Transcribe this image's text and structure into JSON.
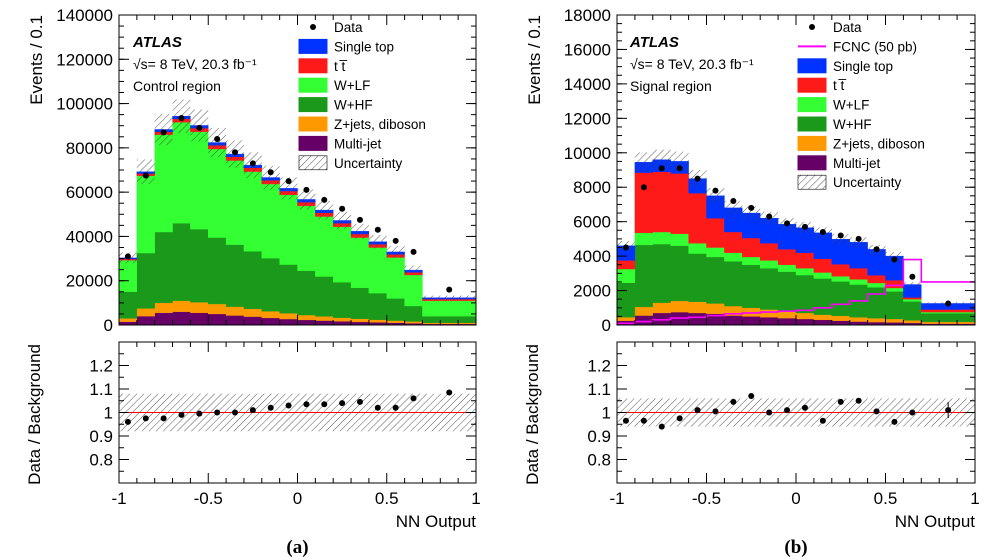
{
  "chart_data": [
    {
      "type": "stacked-histogram",
      "panel_label": "(a)",
      "region": "Control region",
      "experiment": "ATLAS",
      "energy_label": "√s= 8 TeV,  20.3 fb⁻¹",
      "xlabel": "NN Output",
      "ylabel": "Events / 0.1",
      "ratio_ylabel": "Data / Background",
      "xlim": [
        -1,
        1
      ],
      "ylim": [
        0,
        140000
      ],
      "yticks": [
        "0",
        "20000",
        "40000",
        "60000",
        "80000",
        "100000",
        "120000",
        "140000"
      ],
      "xticks": [
        "-1",
        "-0.5",
        "0",
        "0.5",
        "1"
      ],
      "ratio_ylim": [
        0.7,
        1.3
      ],
      "ratio_yticks": [
        "0.8",
        "0.9",
        "1",
        "1.1",
        "1.2"
      ],
      "legend_position": "top-right",
      "legend": [
        {
          "label": "Data",
          "kind": "marker"
        },
        {
          "label": "Single top",
          "kind": "box",
          "color": "#0033ff"
        },
        {
          "label": "t t̅",
          "kind": "box",
          "color": "#ff1a1a"
        },
        {
          "label": "W+LF",
          "kind": "box",
          "color": "#33ff33"
        },
        {
          "label": "W+HF",
          "kind": "box",
          "color": "#1a991a"
        },
        {
          "label": "Z+jets, diboson",
          "kind": "box",
          "color": "#ff9900"
        },
        {
          "label": "Multi-jet",
          "kind": "box",
          "color": "#660066"
        },
        {
          "label": "Uncertainty",
          "kind": "hatch"
        }
      ],
      "bin_edges": [
        -1,
        -0.9,
        -0.8,
        -0.7,
        -0.6,
        -0.5,
        -0.4,
        -0.3,
        -0.2,
        -0.1,
        0,
        0.1,
        0.2,
        0.3,
        0.4,
        0.5,
        0.6,
        0.7,
        1
      ],
      "stack": [
        {
          "name": "Multi-jet",
          "color": "#660066",
          "values": [
            1500,
            4000,
            5500,
            6000,
            5500,
            5000,
            4300,
            3800,
            3200,
            2700,
            2300,
            2000,
            1700,
            1400,
            1200,
            1000,
            800,
            500
          ]
        },
        {
          "name": "Z+jets, diboson",
          "color": "#ff9900",
          "values": [
            1500,
            3500,
            4500,
            5000,
            4800,
            4500,
            4000,
            3500,
            3000,
            2600,
            2200,
            1900,
            1600,
            1400,
            1200,
            1000,
            800,
            500
          ]
        },
        {
          "name": "W+HF",
          "color": "#1a991a",
          "values": [
            12000,
            25000,
            32000,
            35000,
            33000,
            30000,
            28000,
            26000,
            24000,
            22000,
            20000,
            18000,
            16000,
            14000,
            12000,
            10000,
            7000,
            3000
          ]
        },
        {
          "name": "W+LF",
          "color": "#33ff33",
          "values": [
            14300,
            34900,
            44000,
            45600,
            44000,
            40000,
            38000,
            36000,
            33500,
            31500,
            29300,
            27100,
            25100,
            22700,
            20600,
            18500,
            14000,
            7000
          ]
        },
        {
          "name": "t t̅",
          "color": "#ff1a1a",
          "values": [
            500,
            1000,
            1300,
            1500,
            1600,
            1700,
            1700,
            1700,
            1700,
            1700,
            1700,
            1700,
            1600,
            1600,
            1500,
            1400,
            1200,
            700
          ]
        },
        {
          "name": "Single top",
          "color": "#0033ff",
          "values": [
            500,
            800,
            1000,
            1200,
            1200,
            1200,
            1200,
            1200,
            1200,
            1200,
            1200,
            1200,
            1200,
            1200,
            1100,
            1100,
            1000,
            600
          ]
        }
      ],
      "data_points": {
        "x": [
          -0.95,
          -0.85,
          -0.75,
          -0.65,
          -0.55,
          -0.45,
          -0.35,
          -0.25,
          -0.15,
          -0.05,
          0.05,
          0.15,
          0.25,
          0.35,
          0.45,
          0.55,
          0.65,
          0.85
        ],
        "y": [
          31000,
          67500,
          87000,
          93500,
          89000,
          84000,
          78000,
          73000,
          69000,
          65000,
          61000,
          56500,
          52500,
          47500,
          43000,
          38000,
          33000,
          16000
        ]
      },
      "ratio_points": {
        "x": [
          -0.95,
          -0.85,
          -0.75,
          -0.65,
          -0.55,
          -0.45,
          -0.35,
          -0.25,
          -0.15,
          -0.05,
          0.05,
          0.15,
          0.25,
          0.35,
          0.45,
          0.55,
          0.65,
          0.85
        ],
        "y": [
          0.96,
          0.975,
          0.975,
          0.99,
          0.995,
          1.0,
          1.0,
          1.01,
          1.02,
          1.03,
          1.035,
          1.035,
          1.04,
          1.045,
          1.02,
          1.02,
          1.06,
          1.085
        ]
      },
      "ratio_band_half_width": [
        0.08,
        0.08,
        0.08,
        0.08,
        0.08,
        0.08,
        0.08,
        0.08,
        0.08,
        0.08,
        0.08,
        0.08,
        0.08,
        0.08,
        0.08,
        0.08,
        0.08,
        0.08
      ],
      "uncertainty_fraction": 0.08
    },
    {
      "type": "stacked-histogram",
      "panel_label": "(b)",
      "region": "Signal region",
      "experiment": "ATLAS",
      "energy_label": "√s= 8 TeV,  20.3 fb⁻¹",
      "xlabel": "NN Output",
      "ylabel": "Events / 0.1",
      "ratio_ylabel": "Data / Background",
      "xlim": [
        -1,
        1
      ],
      "ylim": [
        0,
        18000
      ],
      "yticks": [
        "0",
        "2000",
        "4000",
        "6000",
        "8000",
        "10000",
        "12000",
        "14000",
        "16000",
        "18000"
      ],
      "xticks": [
        "-1",
        "-0.5",
        "0",
        "0.5",
        "1"
      ],
      "ratio_ylim": [
        0.7,
        1.3
      ],
      "ratio_yticks": [
        "0.8",
        "0.9",
        "1",
        "1.1",
        "1.2"
      ],
      "legend_position": "top-right",
      "legend": [
        {
          "label": "Data",
          "kind": "marker"
        },
        {
          "label": "FCNC (50 pb)",
          "kind": "line",
          "color": "#ff00ff"
        },
        {
          "label": "Single top",
          "kind": "box",
          "color": "#0033ff"
        },
        {
          "label": "t t̅",
          "kind": "box",
          "color": "#ff1a1a"
        },
        {
          "label": "W+LF",
          "kind": "box",
          "color": "#33ff33"
        },
        {
          "label": "W+HF",
          "kind": "box",
          "color": "#1a991a"
        },
        {
          "label": "Z+jets, diboson",
          "kind": "box",
          "color": "#ff9900"
        },
        {
          "label": "Multi-jet",
          "kind": "box",
          "color": "#660066"
        },
        {
          "label": "Uncertainty",
          "kind": "hatch"
        }
      ],
      "bin_edges": [
        -1,
        -0.9,
        -0.8,
        -0.7,
        -0.6,
        -0.5,
        -0.4,
        -0.3,
        -0.2,
        -0.1,
        0,
        0.1,
        0.2,
        0.3,
        0.4,
        0.5,
        0.6,
        0.7,
        1
      ],
      "stack": [
        {
          "name": "Multi-jet",
          "color": "#660066",
          "values": [
            250,
            550,
            700,
            750,
            700,
            650,
            550,
            500,
            450,
            400,
            350,
            300,
            250,
            200,
            170,
            150,
            120,
            80
          ]
        },
        {
          "name": "Z+jets, diboson",
          "color": "#ff9900",
          "values": [
            200,
            500,
            600,
            650,
            650,
            600,
            550,
            500,
            450,
            400,
            350,
            300,
            280,
            250,
            220,
            200,
            150,
            100
          ]
        },
        {
          "name": "W+HF",
          "color": "#1a991a",
          "values": [
            2000,
            3600,
            3400,
            3200,
            2800,
            2700,
            2600,
            2500,
            2400,
            2300,
            2200,
            2100,
            2000,
            1900,
            1800,
            1600,
            1100,
            500
          ]
        },
        {
          "name": "W+LF",
          "color": "#33ff33",
          "values": [
            800,
            700,
            700,
            700,
            600,
            550,
            500,
            450,
            450,
            400,
            400,
            350,
            300,
            300,
            250,
            200,
            130,
            70
          ]
        },
        {
          "name": "t t̅",
          "color": "#ff1a1a",
          "values": [
            500,
            3500,
            3500,
            3500,
            2900,
            1700,
            1200,
            1100,
            1000,
            900,
            900,
            800,
            700,
            650,
            450,
            450,
            100,
            150
          ]
        },
        {
          "name": "Single top",
          "color": "#0033ff",
          "values": [
            850,
            600,
            700,
            700,
            850,
            1300,
            1400,
            1450,
            1450,
            1450,
            1450,
            1500,
            1450,
            1500,
            1500,
            1400,
            750,
            350
          ]
        }
      ],
      "signal_line": {
        "name": "FCNC (50 pb)",
        "color": "#ff00ff",
        "values": [
          100,
          200,
          300,
          400,
          450,
          550,
          650,
          700,
          750,
          800,
          850,
          1000,
          1200,
          1400,
          1800,
          2300,
          3800,
          2500
        ]
      },
      "data_points": {
        "x": [
          -0.95,
          -0.85,
          -0.75,
          -0.65,
          -0.55,
          -0.45,
          -0.35,
          -0.25,
          -0.15,
          -0.05,
          0.05,
          0.15,
          0.25,
          0.35,
          0.45,
          0.55,
          0.65,
          0.85
        ],
        "y": [
          4500,
          8000,
          9100,
          9100,
          8500,
          7800,
          7200,
          6800,
          6300,
          5900,
          5700,
          5400,
          5200,
          5000,
          4400,
          3800,
          2800,
          1250
        ]
      },
      "ratio_points": {
        "x": [
          -0.95,
          -0.85,
          -0.75,
          -0.65,
          -0.55,
          -0.45,
          -0.35,
          -0.25,
          -0.15,
          -0.05,
          0.05,
          0.15,
          0.25,
          0.35,
          0.45,
          0.55,
          0.65,
          0.85
        ],
        "y": [
          0.965,
          0.965,
          0.94,
          0.975,
          1.01,
          1.005,
          1.045,
          1.07,
          1.0,
          1.01,
          1.02,
          0.965,
          1.045,
          1.05,
          1.005,
          0.96,
          1.0,
          1.01
        ]
      },
      "ratio_band_half_width": [
        0.06,
        0.06,
        0.06,
        0.06,
        0.06,
        0.06,
        0.06,
        0.06,
        0.06,
        0.06,
        0.06,
        0.06,
        0.06,
        0.06,
        0.06,
        0.06,
        0.06,
        0.06
      ],
      "uncertainty_fraction": 0.06
    }
  ]
}
